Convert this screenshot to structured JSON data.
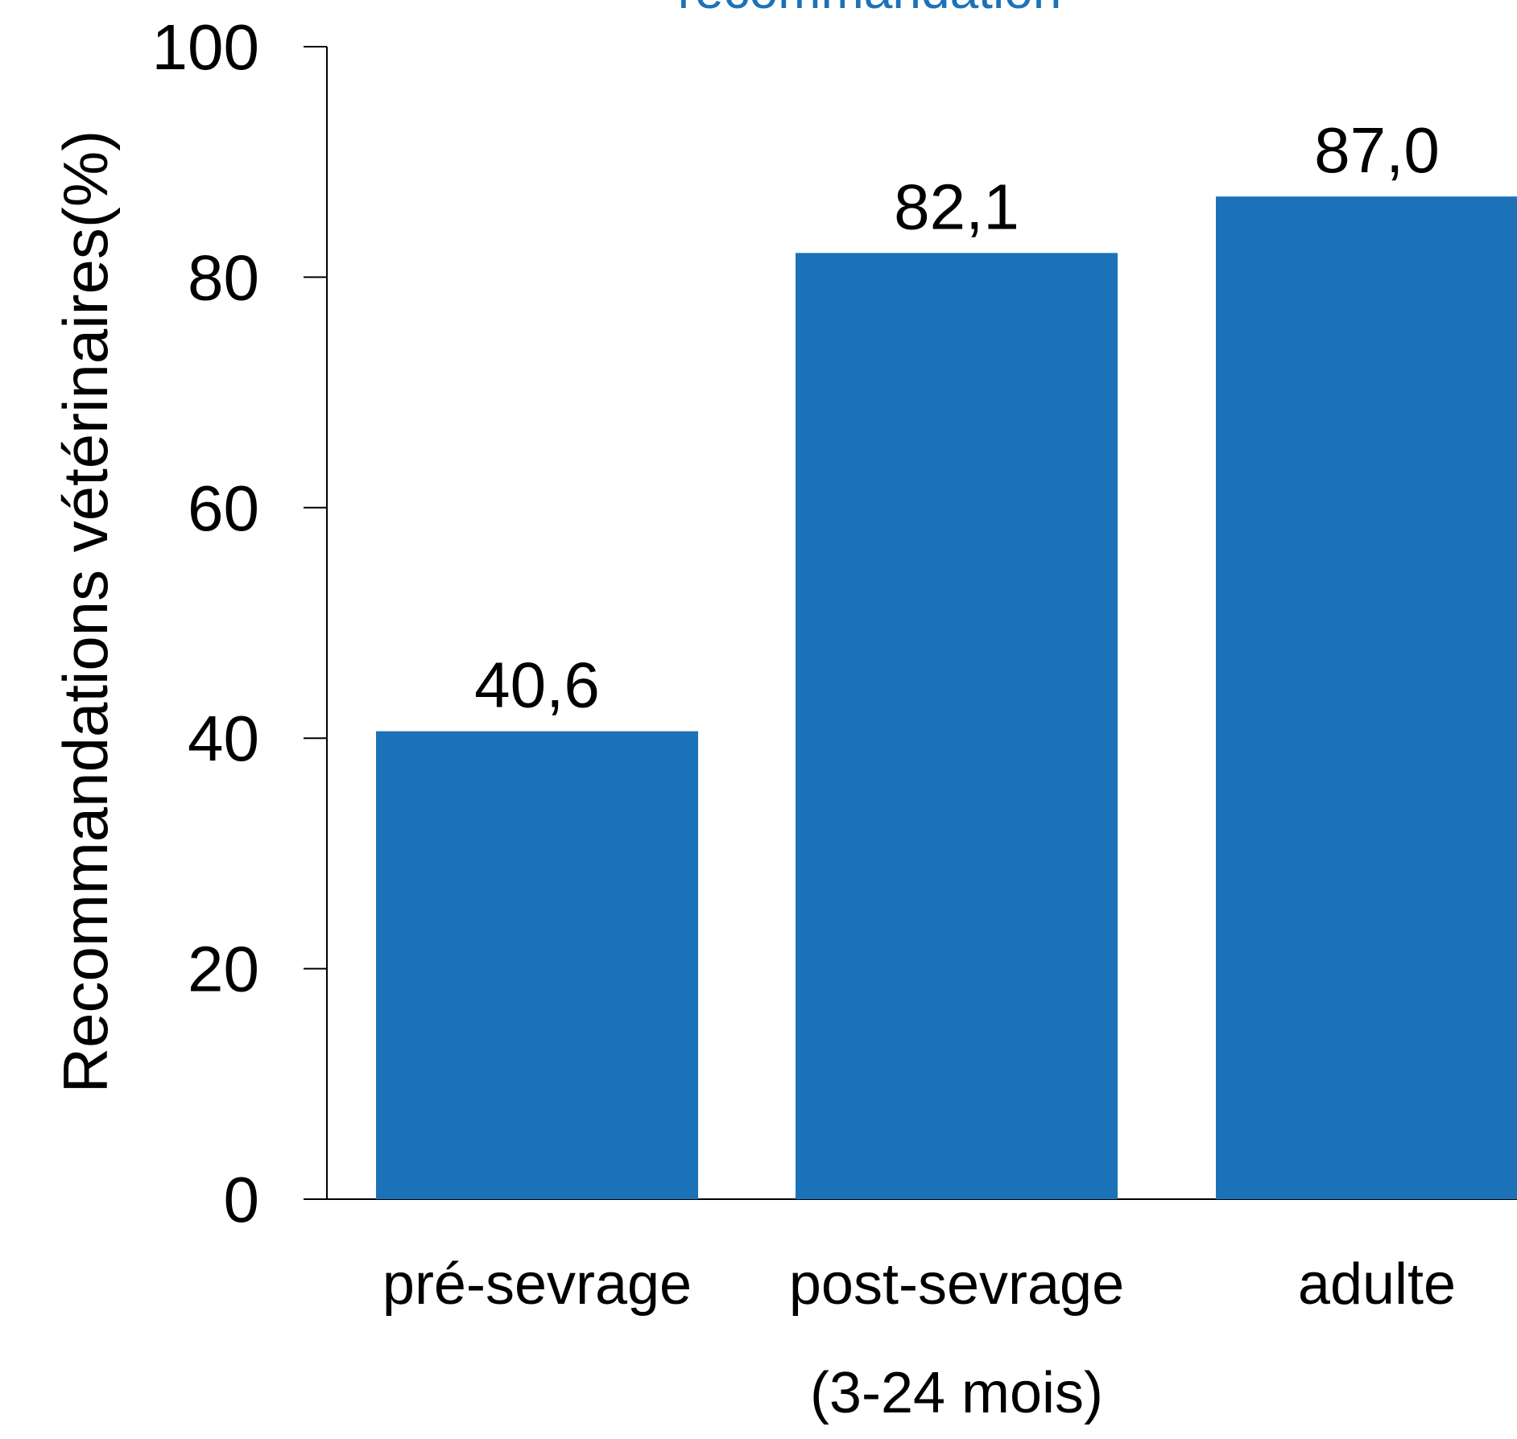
{
  "chart_data": {
    "type": "bar",
    "title": "recommandation",
    "ylabel": "Recommandations vétérinaires(%)",
    "xlabel": "",
    "ylim": [
      0,
      100
    ],
    "yticks": [
      0,
      20,
      40,
      60,
      80,
      100
    ],
    "categories": [
      {
        "line1": "pré-sevrage",
        "line2": ""
      },
      {
        "line1": "post-sevrage",
        "line2": "(3-24 mois)"
      },
      {
        "line1": "adulte",
        "line2": ""
      }
    ],
    "values": [
      40.6,
      82.1,
      87.0
    ],
    "value_labels": [
      "40,6",
      "82,1",
      "87,0"
    ],
    "bar_color": "#1b72b8",
    "title_color": "#1b72b8",
    "grid": false
  }
}
